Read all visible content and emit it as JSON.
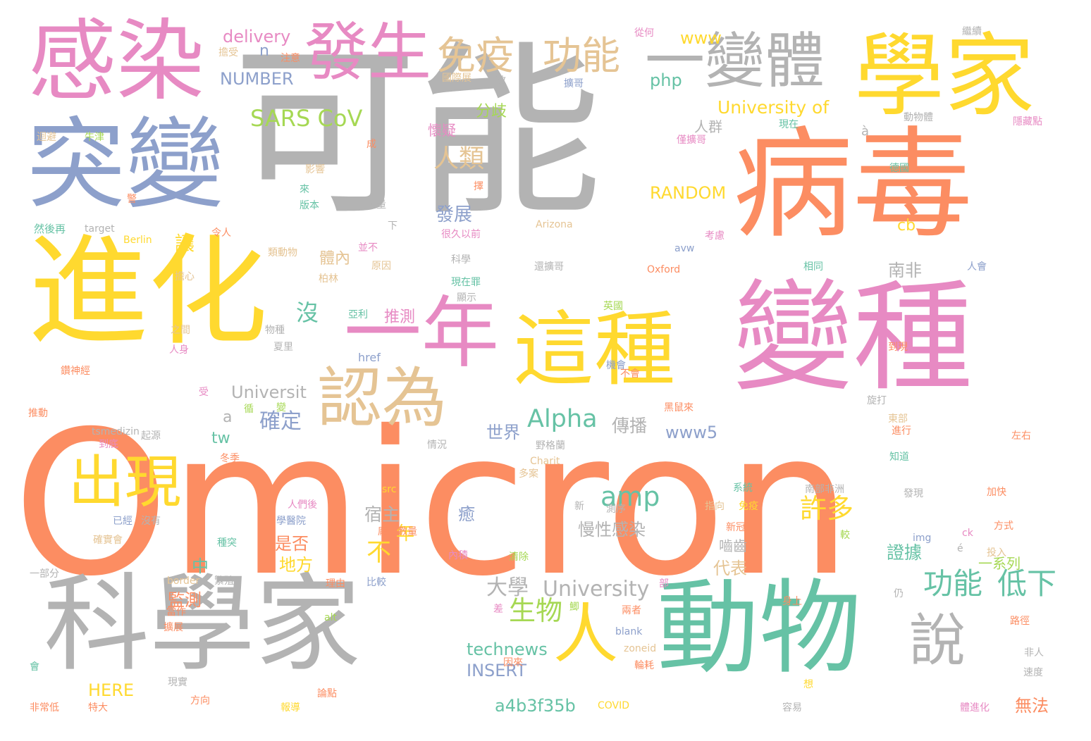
{
  "palette": {
    "orange": "#fc8d62",
    "gray": "#b3b3b3",
    "yellow": "#ffd92f",
    "pink": "#e78ac3",
    "blue": "#8da0cb",
    "green": "#66c2a5",
    "lime": "#a6d854",
    "tan": "#e5c494"
  },
  "words": [
    {
      "text": "Omicron",
      "color": "orange"
    },
    {
      "text": "可能",
      "color": "gray"
    },
    {
      "text": "病毒",
      "color": "orange"
    },
    {
      "text": "變種",
      "color": "pink"
    },
    {
      "text": "進化",
      "color": "yellow"
    },
    {
      "text": "突變",
      "color": "blue"
    },
    {
      "text": "科學家",
      "color": "gray"
    },
    {
      "text": "動物",
      "color": "green"
    },
    {
      "text": "學家",
      "color": "yellow"
    },
    {
      "text": "感染",
      "color": "pink"
    },
    {
      "text": "這種",
      "color": "yellow"
    },
    {
      "text": "一年",
      "color": "pink"
    },
    {
      "text": "發生",
      "color": "pink"
    },
    {
      "text": "一變體",
      "color": "gray"
    },
    {
      "text": "認為",
      "color": "tan"
    },
    {
      "text": "出現",
      "color": "yellow"
    },
    {
      "text": "人",
      "color": "yellow"
    },
    {
      "text": "說",
      "color": "gray"
    },
    {
      "text": "免疫",
      "color": "tan"
    },
    {
      "text": "功能",
      "color": "tan"
    },
    {
      "text": "功能",
      "color": "green"
    },
    {
      "text": "低下",
      "color": "green"
    },
    {
      "text": "Alpha",
      "color": "green"
    },
    {
      "text": "生物",
      "color": "lime"
    },
    {
      "text": "大學",
      "color": "gray"
    },
    {
      "text": "University",
      "color": "gray"
    },
    {
      "text": "人類",
      "color": "tan"
    },
    {
      "text": "SARS CoV",
      "color": "lime"
    },
    {
      "text": "University of",
      "color": "yellow"
    },
    {
      "text": "確定",
      "color": "blue"
    },
    {
      "text": "許多",
      "color": "yellow"
    },
    {
      "text": "amp",
      "color": "green"
    },
    {
      "text": "讓",
      "color": "yellow"
    },
    {
      "text": "沒",
      "color": "green"
    },
    {
      "text": "不",
      "color": "yellow"
    },
    {
      "text": "RANDOM",
      "color": "yellow"
    },
    {
      "text": "NUMBER",
      "color": "blue"
    },
    {
      "text": "delivery",
      "color": "pink"
    },
    {
      "text": "www",
      "color": "yellow"
    },
    {
      "text": "php",
      "color": "green"
    },
    {
      "text": "www5",
      "color": "blue"
    },
    {
      "text": "technews",
      "color": "green"
    },
    {
      "text": "INSERT",
      "color": "blue"
    },
    {
      "text": "HERE",
      "color": "yellow"
    },
    {
      "text": "a4b3f35b",
      "color": "green"
    },
    {
      "text": "Universit",
      "color": "gray"
    },
    {
      "text": "發展",
      "color": "blue"
    },
    {
      "text": "傳播",
      "color": "gray"
    },
    {
      "text": "世界",
      "color": "blue"
    },
    {
      "text": "宿主",
      "color": "gray"
    },
    {
      "text": "慢性感染",
      "color": "gray"
    },
    {
      "text": "南非",
      "color": "gray"
    },
    {
      "text": "證據",
      "color": "green"
    },
    {
      "text": "代表",
      "color": "tan"
    },
    {
      "text": "監測",
      "color": "orange"
    },
    {
      "text": "是否",
      "color": "orange"
    },
    {
      "text": "地方",
      "color": "yellow"
    },
    {
      "text": "無法",
      "color": "orange"
    },
    {
      "text": "年",
      "color": "yellow"
    },
    {
      "text": "癒",
      "color": "blue"
    },
    {
      "text": "中",
      "color": "green"
    },
    {
      "text": "tw",
      "color": "green"
    },
    {
      "text": "a",
      "color": "gray"
    },
    {
      "text": "n",
      "color": "blue"
    },
    {
      "text": "cb",
      "color": "yellow"
    },
    {
      "text": "體內",
      "color": "tan"
    },
    {
      "text": "推測",
      "color": "pink"
    },
    {
      "text": "懷疑",
      "color": "pink"
    },
    {
      "text": "分歧",
      "color": "lime"
    },
    {
      "text": "人群",
      "color": "gray"
    },
    {
      "text": "嚙齒",
      "color": "gray"
    },
    {
      "text": "一系列",
      "color": "lime"
    },
    {
      "text": "Arizona",
      "color": "tan"
    },
    {
      "text": "Oxford",
      "color": "orange"
    },
    {
      "text": "avw",
      "color": "blue"
    },
    {
      "text": "Berlin",
      "color": "yellow"
    },
    {
      "text": "target",
      "color": "gray"
    },
    {
      "text": "tsmedizin",
      "color": "gray"
    },
    {
      "text": "Charit",
      "color": "tan"
    },
    {
      "text": "src",
      "color": "yellow"
    },
    {
      "text": "href",
      "color": "blue"
    },
    {
      "text": "img",
      "color": "blue"
    },
    {
      "text": "ck",
      "color": "pink"
    },
    {
      "text": "alt",
      "color": "lime"
    },
    {
      "text": "blank",
      "color": "blue"
    },
    {
      "text": "zoneid",
      "color": "tan"
    },
    {
      "text": "border",
      "color": "tan"
    },
    {
      "text": "COVID",
      "color": "yellow"
    },
    {
      "text": "à",
      "color": "gray"
    },
    {
      "text": "é",
      "color": "gray"
    },
    {
      "text": "然後再",
      "color": "green"
    },
    {
      "text": "牛津",
      "color": "lime"
    },
    {
      "text": "迴避",
      "color": "tan"
    },
    {
      "text": "一部分",
      "color": "gray"
    },
    {
      "text": "非常低",
      "color": "orange"
    },
    {
      "text": "特大",
      "color": "orange"
    },
    {
      "text": "報導",
      "color": "yellow"
    },
    {
      "text": "論點",
      "color": "orange"
    },
    {
      "text": "方向",
      "color": "orange"
    },
    {
      "text": "現實",
      "color": "gray"
    },
    {
      "text": "影響",
      "color": "tan"
    },
    {
      "text": "版本",
      "color": "green"
    },
    {
      "text": "大量",
      "color": "gray"
    },
    {
      "text": "原因",
      "color": "tan"
    },
    {
      "text": "科學",
      "color": "gray"
    },
    {
      "text": "類動物",
      "color": "tan"
    },
    {
      "text": "柏林",
      "color": "tan"
    },
    {
      "text": "令人",
      "color": "orange"
    },
    {
      "text": "擔心",
      "color": "tan"
    },
    {
      "text": "物種",
      "color": "gray"
    },
    {
      "text": "夏里",
      "color": "gray"
    },
    {
      "text": "之間",
      "color": "tan"
    },
    {
      "text": "亞利",
      "color": "green"
    },
    {
      "text": "並不",
      "color": "pink"
    },
    {
      "text": "很久以前",
      "color": "pink"
    },
    {
      "text": "現在罪",
      "color": "green"
    },
    {
      "text": "顯示",
      "color": "gray"
    },
    {
      "text": "還擴哥",
      "color": "gray"
    },
    {
      "text": "英國",
      "color": "lime"
    },
    {
      "text": "機會",
      "color": "blue"
    },
    {
      "text": "不會",
      "color": "orange"
    },
    {
      "text": "黑鼠來",
      "color": "orange"
    },
    {
      "text": "野格蘭",
      "color": "gray"
    },
    {
      "text": "情況",
      "color": "gray"
    },
    {
      "text": "起源",
      "color": "gray"
    },
    {
      "text": "到底",
      "color": "pink"
    },
    {
      "text": "冬季",
      "color": "orange"
    },
    {
      "text": "多案",
      "color": "tan"
    },
    {
      "text": "學醫院",
      "color": "blue"
    },
    {
      "text": "人們後",
      "color": "pink"
    },
    {
      "text": "已經",
      "color": "blue"
    },
    {
      "text": "沒有",
      "color": "gray"
    },
    {
      "text": "種突",
      "color": "green"
    },
    {
      "text": "繁殖",
      "color": "gray"
    },
    {
      "text": "確實會",
      "color": "tan"
    },
    {
      "text": "龐大數量",
      "color": "orange"
    },
    {
      "text": "內積",
      "color": "pink"
    },
    {
      "text": "清除",
      "color": "lime"
    },
    {
      "text": "比較",
      "color": "blue"
    },
    {
      "text": "理由",
      "color": "orange"
    },
    {
      "text": "系統",
      "color": "green"
    },
    {
      "text": "測序",
      "color": "gray"
    },
    {
      "text": "指向",
      "color": "tan"
    },
    {
      "text": "新冠",
      "color": "orange"
    },
    {
      "text": "免疫",
      "color": "yellow"
    },
    {
      "text": "南部非洲",
      "color": "gray"
    },
    {
      "text": "發現",
      "color": "gray"
    },
    {
      "text": "加快",
      "color": "orange"
    },
    {
      "text": "方式",
      "color": "orange"
    },
    {
      "text": "較",
      "color": "lime"
    },
    {
      "text": "投入",
      "color": "tan"
    },
    {
      "text": "新",
      "color": "gray"
    },
    {
      "text": "部",
      "color": "pink"
    },
    {
      "text": "身上",
      "color": "orange"
    },
    {
      "text": "兩者",
      "color": "orange"
    },
    {
      "text": "路徑",
      "color": "orange"
    },
    {
      "text": "非人",
      "color": "gray"
    },
    {
      "text": "速度",
      "color": "gray"
    },
    {
      "text": "輪耗",
      "color": "orange"
    },
    {
      "text": "想",
      "color": "yellow"
    },
    {
      "text": "容易",
      "color": "gray"
    },
    {
      "text": "體進化",
      "color": "pink"
    },
    {
      "text": "知道",
      "color": "green"
    },
    {
      "text": "左右",
      "color": "orange"
    },
    {
      "text": "進行",
      "color": "orange"
    },
    {
      "text": "旋打",
      "color": "gray"
    },
    {
      "text": "東部",
      "color": "tan"
    },
    {
      "text": "到現",
      "color": "orange"
    },
    {
      "text": "人會",
      "color": "blue"
    },
    {
      "text": "相同",
      "color": "green"
    },
    {
      "text": "考慮",
      "color": "pink"
    },
    {
      "text": "德國",
      "color": "green"
    },
    {
      "text": "僅擴哥",
      "color": "pink"
    },
    {
      "text": "動物體",
      "color": "gray"
    },
    {
      "text": "現在",
      "color": "green"
    },
    {
      "text": "隱藏點",
      "color": "pink"
    },
    {
      "text": "繼續",
      "color": "gray"
    },
    {
      "text": "擴哥",
      "color": "blue"
    },
    {
      "text": "國際展",
      "color": "tan"
    },
    {
      "text": "一致",
      "color": "gray"
    },
    {
      "text": "從何",
      "color": "pink"
    },
    {
      "text": "注意",
      "color": "orange"
    },
    {
      "text": "擔受",
      "color": "tan"
    },
    {
      "text": "成",
      "color": "orange"
    },
    {
      "text": "擇",
      "color": "orange"
    },
    {
      "text": "來",
      "color": "green"
    },
    {
      "text": "下",
      "color": "gray"
    },
    {
      "text": "警",
      "color": "orange"
    },
    {
      "text": "受",
      "color": "pink"
    },
    {
      "text": "循",
      "color": "lime"
    },
    {
      "text": "當作",
      "color": "orange"
    },
    {
      "text": "擴展",
      "color": "orange"
    },
    {
      "text": "會",
      "color": "green"
    },
    {
      "text": "鑽神經",
      "color": "orange"
    },
    {
      "text": "推動",
      "color": "orange"
    },
    {
      "text": "人身",
      "color": "pink"
    },
    {
      "text": "仍",
      "color": "gray"
    },
    {
      "text": "差",
      "color": "pink"
    },
    {
      "text": "鯽",
      "color": "lime"
    },
    {
      "text": "因來",
      "color": "orange"
    },
    {
      "text": "變",
      "color": "lime"
    }
  ]
}
